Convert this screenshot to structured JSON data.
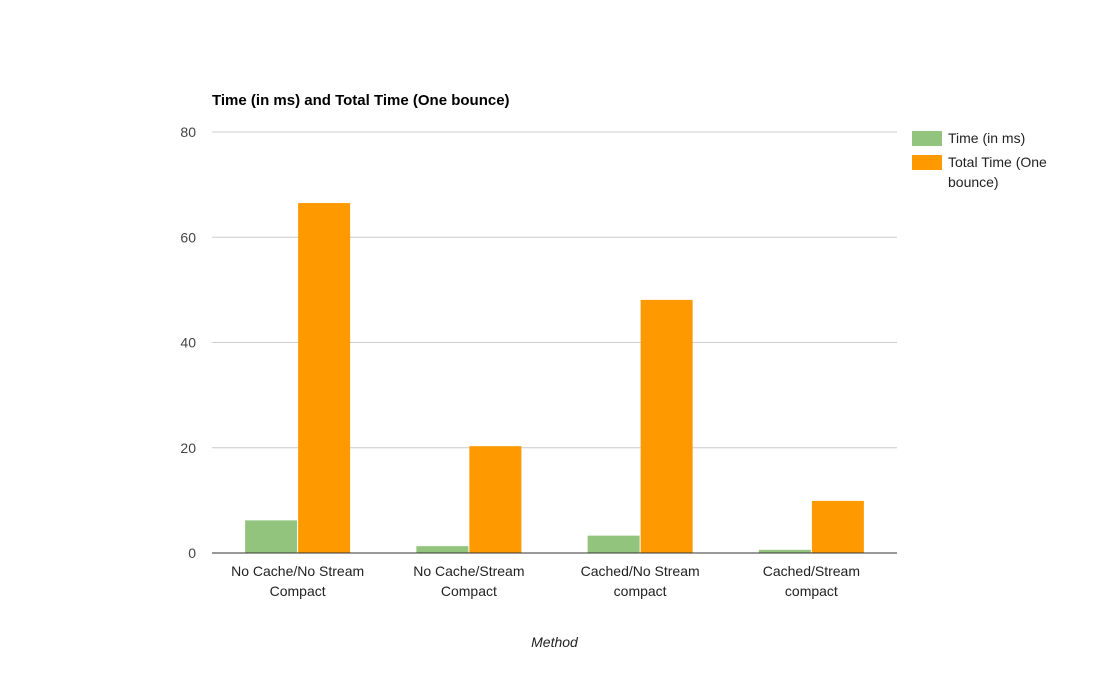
{
  "chart_data": {
    "type": "bar",
    "title": "Time (in ms) and Total Time (One bounce)",
    "xlabel": "Method",
    "ylabel": "",
    "ylim": [
      0,
      80
    ],
    "yticks": [
      "0",
      "20",
      "40",
      "60",
      "80"
    ],
    "grid": true,
    "legend_position": "right",
    "categories": [
      [
        "No Cache/No Stream",
        "Compact"
      ],
      [
        "No Cache/Stream",
        "Compact"
      ],
      [
        "Cached/No Stream",
        "compact"
      ],
      [
        "Cached/Stream",
        "compact"
      ]
    ],
    "series": [
      {
        "name": "Time (in ms)",
        "color": "#93c47d",
        "values": [
          6.2,
          1.3,
          3.3,
          0.6
        ]
      },
      {
        "name": "Total Time (One bounce)",
        "legend_lines": [
          "Total Time (One",
          "bounce)"
        ],
        "color": "#ff9900",
        "values": [
          66.5,
          20.3,
          48.1,
          9.9
        ]
      }
    ]
  }
}
